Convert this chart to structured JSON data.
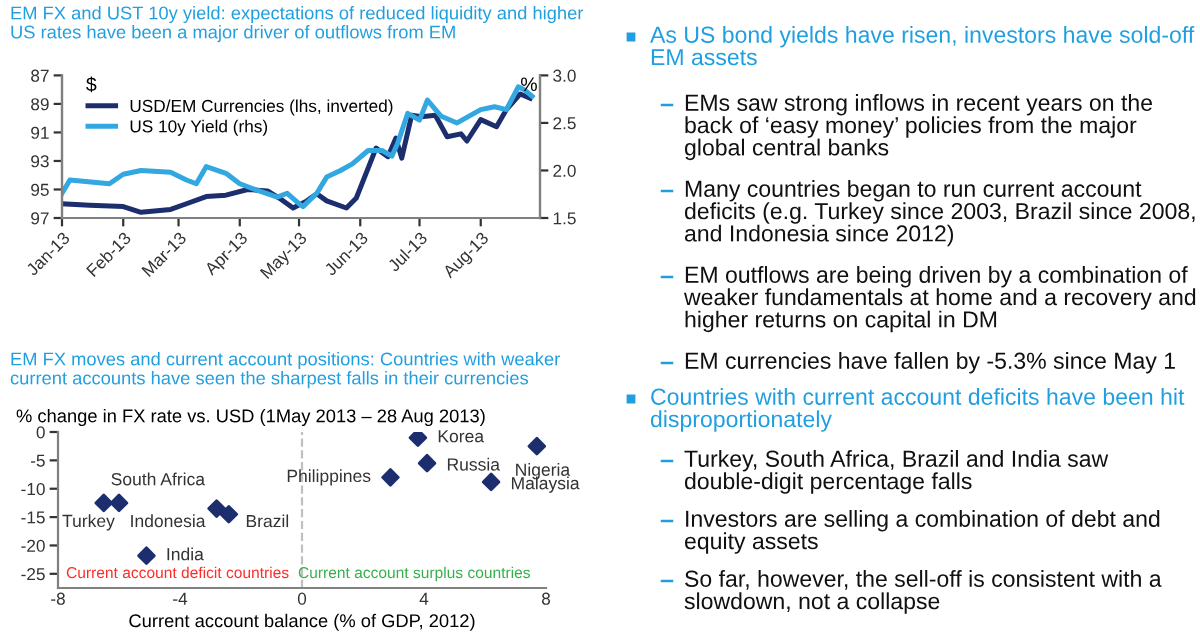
{
  "chart_data": [
    {
      "type": "line",
      "title": "EM FX and UST 10y yield: expectations of reduced liquidity and higher US rates have been a major driver of outflows from EM",
      "ylabel": "$",
      "y2label": "%",
      "legend": "top left",
      "grid": false,
      "xlim": [
        "2013-01-01",
        "2013-08-31"
      ],
      "xticks": [
        {
          "value": "2013-01-01",
          "label": "Jan-13"
        },
        {
          "value": "2013-02-01",
          "label": "Feb-13"
        },
        {
          "value": "2013-03-01",
          "label": "Mar-13"
        },
        {
          "value": "2013-04-01",
          "label": "Apr-13"
        },
        {
          "value": "2013-05-01",
          "label": "May-13"
        },
        {
          "value": "2013-06-01",
          "label": "Jun-13"
        },
        {
          "value": "2013-07-01",
          "label": "Jul-13"
        },
        {
          "value": "2013-08-01",
          "label": "Aug-13"
        }
      ],
      "ylim": [
        97,
        87
      ],
      "yticks": [
        87,
        89,
        91,
        93,
        95,
        97
      ],
      "y2lim": [
        1.5,
        3.0
      ],
      "y2ticks": [
        {
          "value": 1.5,
          "label": "1.5"
        },
        {
          "value": 2.0,
          "label": "2.0"
        },
        {
          "value": 2.5,
          "label": "2.5"
        },
        {
          "value": 3.0,
          "label": "3.0"
        }
      ],
      "series": [
        {
          "name": "USD/EM Currencies (lhs, inverted)",
          "color": "#1c2e6e",
          "x": [
            "2013-01-01",
            "2013-01-15",
            "2013-02-01",
            "2013-02-10",
            "2013-02-25",
            "2013-03-05",
            "2013-03-15",
            "2013-03-25",
            "2013-04-05",
            "2013-04-15",
            "2013-04-22",
            "2013-04-28",
            "2013-05-05",
            "2013-05-10",
            "2013-05-15",
            "2013-05-25",
            "2013-05-30",
            "2013-06-09",
            "2013-06-15",
            "2013-06-19",
            "2013-06-22",
            "2013-06-27",
            "2013-07-02",
            "2013-07-09",
            "2013-07-15",
            "2013-07-22",
            "2013-07-25",
            "2013-08-01",
            "2013-08-09",
            "2013-08-14",
            "2013-08-21",
            "2013-08-26"
          ],
          "values": [
            96.0,
            96.1,
            96.2,
            96.6,
            96.4,
            96.0,
            95.5,
            95.4,
            95.0,
            95.1,
            95.7,
            96.3,
            95.8,
            95.3,
            95.8,
            96.3,
            95.6,
            92.1,
            92.7,
            91.4,
            92.8,
            89.8,
            89.9,
            89.8,
            91.3,
            91.1,
            91.6,
            90.1,
            90.6,
            89.4,
            88.3,
            88.6
          ]
        },
        {
          "name": "US 10y Yield (rhs)",
          "color": "#33a7e0",
          "axis": "y2",
          "x": [
            "2013-01-01",
            "2013-01-05",
            "2013-01-25",
            "2013-02-01",
            "2013-02-10",
            "2013-02-25",
            "2013-03-05",
            "2013-03-10",
            "2013-03-15",
            "2013-03-25",
            "2013-04-01",
            "2013-04-10",
            "2013-04-20",
            "2013-04-25",
            "2013-05-01",
            "2013-05-03",
            "2013-05-10",
            "2013-05-15",
            "2013-05-22",
            "2013-05-28",
            "2013-06-05",
            "2013-06-12",
            "2013-06-17",
            "2013-06-20",
            "2013-06-25",
            "2013-07-01",
            "2013-07-05",
            "2013-07-12",
            "2013-07-20",
            "2013-08-01",
            "2013-08-08",
            "2013-08-14",
            "2013-08-20",
            "2013-08-23",
            "2013-08-27"
          ],
          "values": [
            1.76,
            1.9,
            1.86,
            1.96,
            2.0,
            1.98,
            1.9,
            1.86,
            2.04,
            1.97,
            1.86,
            1.79,
            1.72,
            1.76,
            1.65,
            1.62,
            1.76,
            1.93,
            2.0,
            2.07,
            2.21,
            2.21,
            2.15,
            2.29,
            2.6,
            2.53,
            2.74,
            2.57,
            2.5,
            2.64,
            2.67,
            2.64,
            2.88,
            2.85,
            2.78
          ]
        }
      ]
    },
    {
      "type": "scatter",
      "title": "EM FX moves and current account positions: Countries with weaker current accounts have seen the sharpest falls in their currencies",
      "ylabel": "% change in FX rate vs. USD (1May 2013 – 28 Aug 2013)",
      "xlabel": "Current account balance (% of GDP, 2012)",
      "marker": "diamond",
      "grid": false,
      "xlim": [
        -8,
        8
      ],
      "xticks": [
        -8,
        -4,
        0,
        4,
        8
      ],
      "ylim": [
        -27.5,
        0
      ],
      "yticks": [
        0,
        -5,
        -10,
        -15,
        -20,
        -25
      ],
      "ref_lines": [
        {
          "axis": "x",
          "value": 0,
          "line_style": "dashed",
          "color": "#c0c0c0"
        }
      ],
      "x": [
        -6.5,
        -6.0,
        -2.8,
        -2.4,
        -5.1,
        2.9,
        3.8,
        4.1,
        6.2,
        7.7
      ],
      "values": [
        -12.5,
        -12.5,
        -13.5,
        -14.5,
        -21.8,
        -8.0,
        -1.0,
        -5.5,
        -8.8,
        -2.5
      ],
      "color": "#1c2e6e",
      "annotations": [
        {
          "text": "Turkey",
          "x": -6.5,
          "y": -12.5
        },
        {
          "text": "South Africa",
          "x": -6.0,
          "y": -12.5
        },
        {
          "text": "Indonesia",
          "x": -2.8,
          "y": -13.5
        },
        {
          "text": "Brazil",
          "x": -2.4,
          "y": -14.5
        },
        {
          "text": "India",
          "x": -5.1,
          "y": -21.8
        },
        {
          "text": "Philippines",
          "x": 2.9,
          "y": -8.0
        },
        {
          "text": "Korea",
          "x": 3.8,
          "y": -1.0
        },
        {
          "text": "Russia",
          "x": 4.1,
          "y": -5.5
        },
        {
          "text": "Malaysia",
          "x": 6.2,
          "y": -8.8
        },
        {
          "text": "Nigeria",
          "x": 7.7,
          "y": -2.5
        },
        "Current account deficit countries",
        "Current account surplus countries"
      ]
    },
    {
      "type": "other",
      "annotations": [
        "As US bond yields have risen, investors have sold-off EM assets",
        "EMs saw strong inflows in recent years on the back of ‘easy money’ policies from the major global central banks",
        "Many countries began to run current account deficits (e.g. Turkey since 2003, Brazil since 2008, and Indonesia since 2012)",
        "EM outflows are being driven by a combination of weaker fundamentals at home and a recovery and higher returns on capital in DM",
        "EM currencies have fallen by -5.3% since May 1",
        "Countries with current account deficits have been hit disproportionately",
        "Turkey, South Africa, Brazil and India saw double-digit percentage falls",
        "Investors are selling a combination of debt and equity assets",
        "So far, however, the sell-off is consistent with a slowdown, not a collapse"
      ]
    }
  ]
}
